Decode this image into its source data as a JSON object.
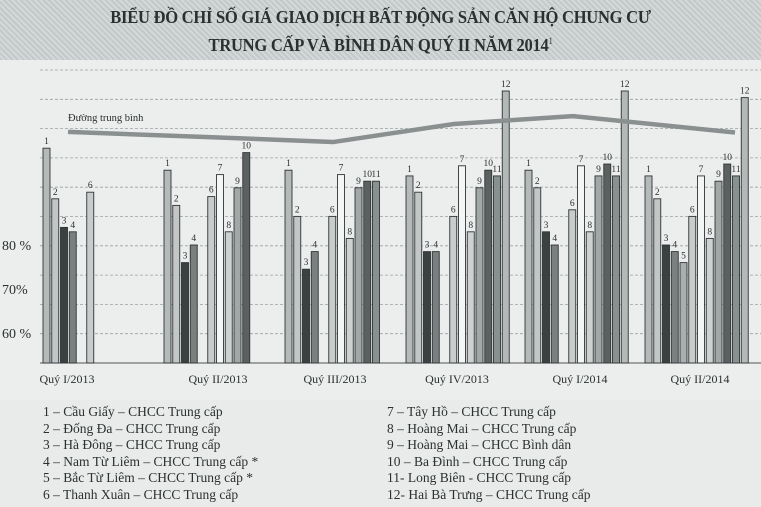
{
  "title": {
    "line1": "BIỂU ĐỒ CHỈ SỐ GIÁ GIAO DỊCH BẤT ĐỘNG SẢN CĂN HỘ CHUNG CƯ",
    "line2": "TRUNG CẤP VÀ BÌNH DÂN QUÝ II NĂM 2014",
    "note_mark": "1"
  },
  "chart_data": {
    "type": "bar",
    "title": "BIỂU ĐỒ CHỈ SỐ GIÁ GIAO DỊCH BẤT ĐỘNG SẢN CĂN HỘ CHUNG CƯ TRUNG CẤP VÀ BÌNH DÂN QUÝ II NĂM 2014",
    "categories": [
      "Quý I/2013",
      "Quý II/2013",
      "Quý III/2013",
      "Quý IV/2013",
      "Quý I/2014",
      "Quý II/2014"
    ],
    "y_tick_labels": [
      {
        "value": 80,
        "label": "80 %"
      },
      {
        "value": 70,
        "label": "70%"
      },
      {
        "value": 60,
        "label": "60 %"
      }
    ],
    "ylim": [
      53,
      117
    ],
    "grid": true,
    "series": [
      {
        "id": "1",
        "name": "1 – Cầu Giấy – CHCC Trung cấp",
        "color": "#b4b9b9",
        "values": [
          102,
          97,
          97,
          95.7,
          97,
          95.7
        ]
      },
      {
        "id": "2",
        "name": "2 – Đống Đa – CHCC Trung cấp",
        "color": "#c2c6c6",
        "values": [
          90.5,
          89,
          86.5,
          92,
          93,
          90.5
        ]
      },
      {
        "id": "3",
        "name": "3 – Hà Đông – CHCC Trung cấp",
        "color": "#3b4040",
        "values": [
          84,
          76,
          74.5,
          78.5,
          83,
          80
        ]
      },
      {
        "id": "4",
        "name": "4 – Nam Từ Liêm – CHCC Trung cấp *",
        "color": "#7a8080",
        "values": [
          83,
          80,
          78.5,
          78.5,
          80,
          78.5
        ]
      },
      {
        "id": "5",
        "name": "5 – Bắc Từ Liêm – CHCC Trung cấp *",
        "color": "#a9aeae",
        "values": [
          null,
          null,
          null,
          null,
          null,
          76
        ]
      },
      {
        "id": "6",
        "name": "6 – Thanh Xuân – CHCC Trung cấp",
        "color": "#c8cccc",
        "values": [
          92,
          91,
          86.5,
          86.5,
          88,
          86.5
        ]
      },
      {
        "id": "7",
        "name": "7 – Tây Hồ – CHCC Trung cấp",
        "color": "#f4f5f5",
        "values": [
          null,
          96,
          96,
          98,
          98,
          95.7
        ]
      },
      {
        "id": "8",
        "name": "8 – Hoàng Mai – CHCC Trung cấp",
        "color": "#cdd1d1",
        "values": [
          null,
          83,
          81.5,
          83,
          83,
          81.5
        ]
      },
      {
        "id": "9",
        "name": "9 – Hoàng Mai – CHCC Bình dân",
        "color": "#a2a7a7",
        "values": [
          null,
          93,
          93,
          93,
          95.7,
          94.5
        ]
      },
      {
        "id": "10",
        "name": "10 – Ba Đình – CHCC Trung cấp",
        "color": "#5b6161",
        "values": [
          null,
          101,
          94.5,
          97,
          98.4,
          98.4
        ]
      },
      {
        "id": "11",
        "name": "11- Long Biên - CHCC Trung cấp",
        "color": "#899090",
        "values": [
          null,
          null,
          94.5,
          95.7,
          95.7,
          95.7
        ]
      },
      {
        "id": "12",
        "name": "12- Hai Bà Trưng – CHCC Trung cấp",
        "color": "#b3b8b8",
        "values": [
          null,
          null,
          null,
          115,
          115,
          113.5
        ]
      }
    ],
    "average_line": {
      "name": "Đường trung bình",
      "color": "#8a9090",
      "values": [
        105.7,
        104.5,
        103.4,
        107.5,
        109.3,
        105.9
      ]
    }
  }
}
